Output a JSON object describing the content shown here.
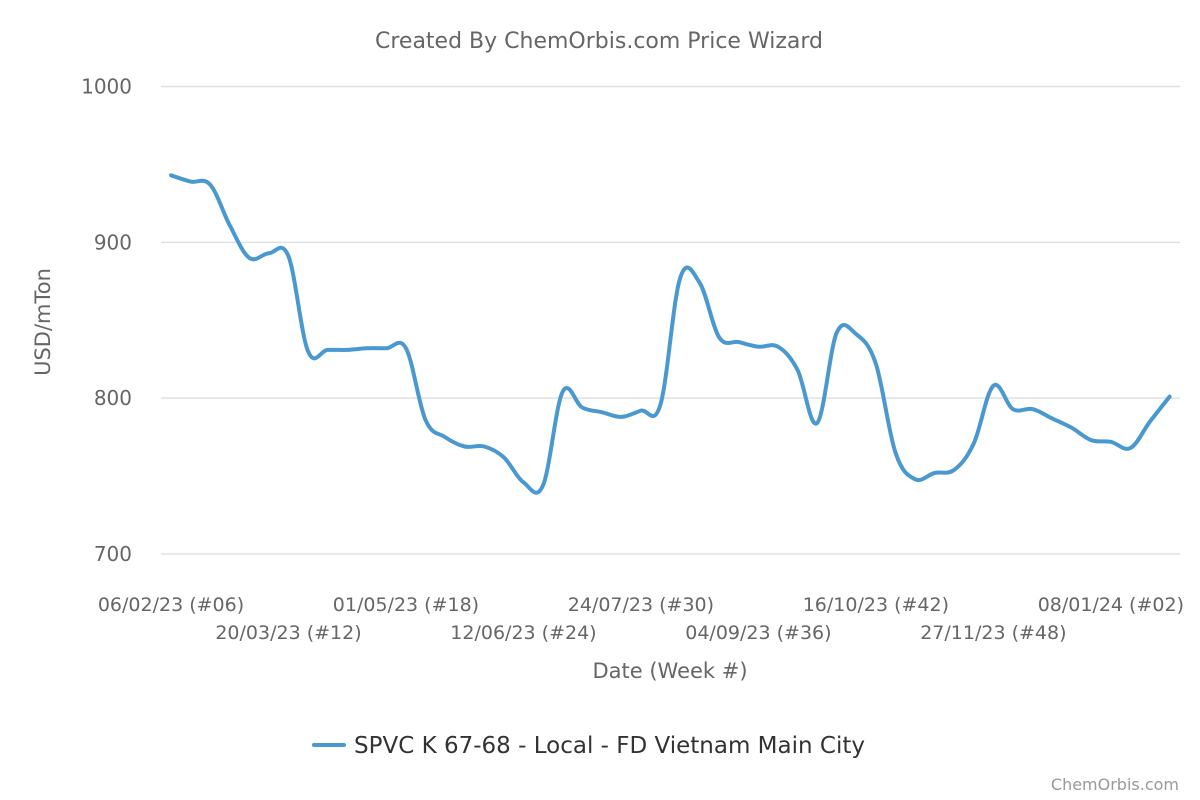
{
  "chart_data": {
    "type": "line",
    "title": "Created By ChemOrbis.com Price Wizard",
    "xlabel": "Date (Week #)",
    "ylabel": "USD/mTon",
    "ylim": [
      700,
      1000
    ],
    "yticks": [
      700,
      800,
      900,
      1000
    ],
    "grid": true,
    "legend_position": "bottom-center",
    "xtick_labels": [
      {
        "label": "06/02/23 (#06)",
        "index": 0,
        "row": 0
      },
      {
        "label": "20/03/23 (#12)",
        "index": 6,
        "row": 1
      },
      {
        "label": "01/05/23 (#18)",
        "index": 12,
        "row": 0
      },
      {
        "label": "12/06/23 (#24)",
        "index": 18,
        "row": 1
      },
      {
        "label": "24/07/23 (#30)",
        "index": 24,
        "row": 0
      },
      {
        "label": "04/09/23 (#36)",
        "index": 30,
        "row": 1
      },
      {
        "label": "16/10/23 (#42)",
        "index": 36,
        "row": 0
      },
      {
        "label": "27/11/23 (#48)",
        "index": 42,
        "row": 1
      },
      {
        "label": "08/01/24 (#02)",
        "index": 48,
        "row": 0
      }
    ],
    "x": [
      "06/02/23 (#06)",
      "13/02/23 (#07)",
      "20/02/23 (#08)",
      "27/02/23 (#09)",
      "06/03/23 (#10)",
      "13/03/23 (#11)",
      "20/03/23 (#12)",
      "27/03/23 (#13)",
      "03/04/23 (#14)",
      "10/04/23 (#15)",
      "17/04/23 (#16)",
      "24/04/23 (#17)",
      "01/05/23 (#18)",
      "08/05/23 (#19)",
      "15/05/23 (#20)",
      "22/05/23 (#21)",
      "29/05/23 (#22)",
      "05/06/23 (#23)",
      "12/06/23 (#24)",
      "19/06/23 (#25)",
      "26/06/23 (#26)",
      "03/07/23 (#27)",
      "10/07/23 (#28)",
      "17/07/23 (#29)",
      "24/07/23 (#30)",
      "31/07/23 (#31)",
      "07/08/23 (#32)",
      "14/08/23 (#33)",
      "21/08/23 (#34)",
      "28/08/23 (#35)",
      "04/09/23 (#36)",
      "11/09/23 (#37)",
      "18/09/23 (#38)",
      "25/09/23 (#39)",
      "02/10/23 (#40)",
      "09/10/23 (#41)",
      "16/10/23 (#42)",
      "23/10/23 (#43)",
      "30/10/23 (#44)",
      "06/11/23 (#45)",
      "13/11/23 (#46)",
      "20/11/23 (#47)",
      "27/11/23 (#48)",
      "04/12/23 (#49)",
      "11/12/23 (#50)",
      "18/12/23 (#51)",
      "25/12/23 (#52)",
      "01/01/24 (#01)",
      "08/01/24 (#02)",
      "15/01/24 (#03)",
      "22/01/24 (#04)",
      "29/01/24 (#05)"
    ],
    "series": [
      {
        "name": "SPVC K 67-68 - Local - FD Vietnam Main City",
        "color": "#4a98d0",
        "values": [
          943,
          939,
          937,
          911,
          890,
          893,
          891,
          830,
          831,
          831,
          832,
          832,
          832,
          786,
          775,
          769,
          769,
          762,
          746,
          744,
          804,
          794,
          791,
          788,
          792,
          796,
          877,
          874,
          839,
          836,
          833,
          833,
          818,
          784,
          842,
          841,
          822,
          765,
          748,
          752,
          754,
          771,
          808,
          793,
          793,
          787,
          781,
          773,
          772,
          768,
          785,
          801
        ]
      }
    ]
  },
  "credit": "ChemOrbis.com"
}
